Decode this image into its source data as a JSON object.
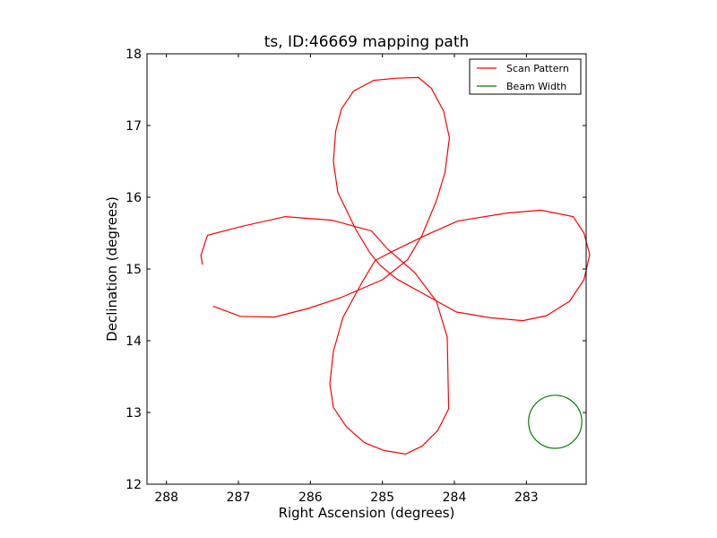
{
  "chart_data": {
    "type": "line",
    "title": "ts, ID:46669 mapping path",
    "xlabel": "Right Ascension (degrees)",
    "ylabel": "Declination (degrees)",
    "xlim": [
      288.27,
      282.17
    ],
    "ylim": [
      12,
      18
    ],
    "x_inverted": true,
    "xticks": [
      288,
      287,
      286,
      285,
      284,
      283
    ],
    "yticks": [
      12,
      13,
      14,
      15,
      16,
      17,
      18
    ],
    "grid": false,
    "legend": {
      "placement": "top-right",
      "entries": [
        "Scan Pattern",
        "Beam Width"
      ]
    },
    "series": [
      {
        "name": "Scan Pattern",
        "color": "#ff0000",
        "points": [
          [
            287.5,
            15.06
          ],
          [
            287.52,
            15.19
          ],
          [
            287.43,
            15.47
          ],
          [
            286.97,
            15.59
          ],
          [
            286.35,
            15.73
          ],
          [
            285.7,
            15.68
          ],
          [
            285.15,
            15.53
          ],
          [
            284.93,
            15.28
          ],
          [
            284.55,
            14.95
          ],
          [
            284.25,
            14.55
          ],
          [
            284.1,
            14.05
          ],
          [
            284.08,
            13.05
          ],
          [
            284.23,
            12.75
          ],
          [
            284.45,
            12.53
          ],
          [
            284.68,
            12.42
          ],
          [
            284.98,
            12.47
          ],
          [
            285.25,
            12.58
          ],
          [
            285.5,
            12.8
          ],
          [
            285.68,
            13.07
          ],
          [
            285.73,
            13.4
          ],
          [
            285.68,
            13.85
          ],
          [
            285.55,
            14.32
          ],
          [
            285.28,
            14.82
          ],
          [
            285.1,
            15.12
          ],
          [
            284.83,
            15.26
          ],
          [
            284.4,
            15.47
          ],
          [
            283.95,
            15.67
          ],
          [
            283.27,
            15.78
          ],
          [
            282.8,
            15.82
          ],
          [
            282.35,
            15.73
          ],
          [
            282.2,
            15.5
          ],
          [
            282.12,
            15.2
          ],
          [
            282.2,
            14.85
          ],
          [
            282.4,
            14.55
          ],
          [
            282.72,
            14.35
          ],
          [
            283.05,
            14.28
          ],
          [
            283.5,
            14.32
          ],
          [
            283.97,
            14.4
          ],
          [
            284.33,
            14.6
          ],
          [
            284.8,
            14.86
          ],
          [
            285.03,
            15.05
          ],
          [
            285.17,
            15.22
          ],
          [
            285.37,
            15.55
          ],
          [
            285.62,
            16.07
          ],
          [
            285.68,
            16.5
          ],
          [
            285.65,
            16.92
          ],
          [
            285.57,
            17.23
          ],
          [
            285.4,
            17.48
          ],
          [
            285.12,
            17.63
          ],
          [
            284.8,
            17.66
          ],
          [
            284.5,
            17.67
          ],
          [
            284.32,
            17.52
          ],
          [
            284.15,
            17.2
          ],
          [
            284.07,
            16.83
          ],
          [
            284.13,
            16.35
          ],
          [
            284.25,
            15.95
          ],
          [
            284.45,
            15.47
          ],
          [
            284.65,
            15.13
          ],
          [
            285.0,
            14.85
          ],
          [
            285.58,
            14.6
          ],
          [
            286.03,
            14.45
          ],
          [
            286.5,
            14.33
          ],
          [
            286.97,
            14.34
          ],
          [
            287.35,
            14.48
          ]
        ]
      },
      {
        "name": "Beam Width",
        "color": "#008000",
        "shape": "circle",
        "center": [
          282.6,
          12.87
        ],
        "radius": 0.37
      }
    ]
  }
}
